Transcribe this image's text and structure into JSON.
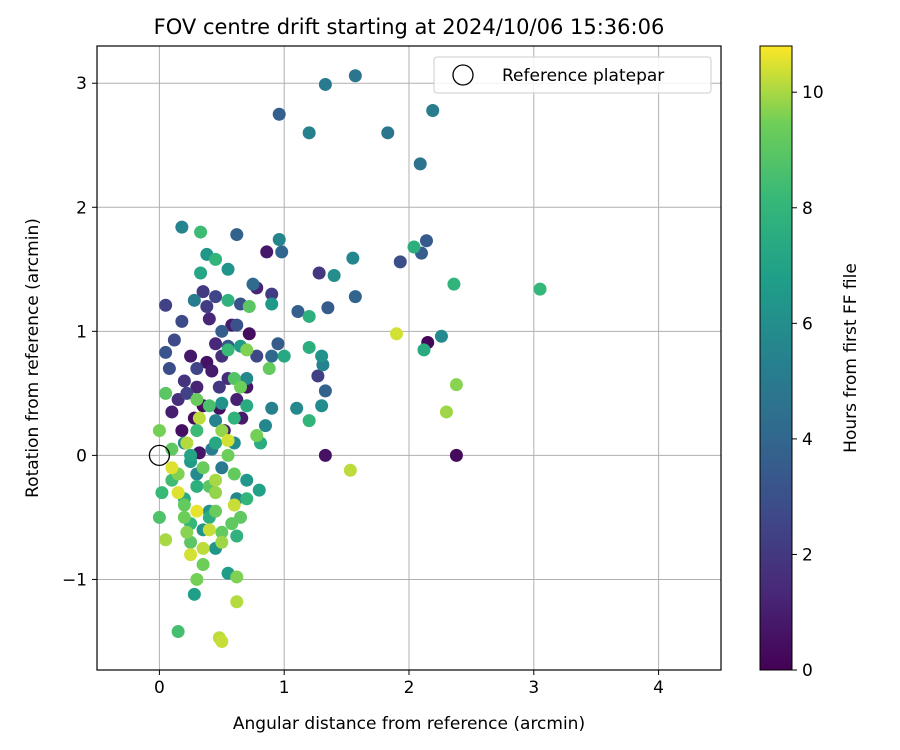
{
  "chart_data": {
    "type": "scatter",
    "title": "FOV centre drift starting at 2024/10/06 15:36:06",
    "xlabel": "Angular distance from reference (arcmin)",
    "ylabel": "Rotation from reference (arcmin)",
    "xlim": [
      -0.5,
      4.5
    ],
    "ylim": [
      -1.73,
      3.3
    ],
    "xticks": [
      0,
      1,
      2,
      3,
      4
    ],
    "yticks": [
      -1,
      0,
      1,
      2,
      3
    ],
    "xtick_labels": [
      "0",
      "1",
      "2",
      "3",
      "4"
    ],
    "ytick_labels": [
      "−1",
      "0",
      "1",
      "2",
      "3"
    ],
    "grid": true,
    "legend": {
      "label": "Reference platepar",
      "placement": "top-right"
    },
    "reference_point": {
      "x": 0,
      "y": 0
    },
    "colorbar": {
      "label": "Hours from first FF file",
      "colormap": "viridis",
      "range": [
        0,
        10.8
      ],
      "ticks": [
        0,
        2,
        4,
        6,
        8,
        10
      ],
      "tick_labels": [
        "0",
        "2",
        "4",
        "6",
        "8",
        "10"
      ]
    },
    "points": [
      {
        "x": 0.38,
        "y": 0.75,
        "c": 0.6
      },
      {
        "x": 0.42,
        "y": 0.68,
        "c": 0.9
      },
      {
        "x": 0.3,
        "y": 0.55,
        "c": 1.2
      },
      {
        "x": 0.48,
        "y": 0.38,
        "c": 0.5
      },
      {
        "x": 0.55,
        "y": 0.62,
        "c": 1.5
      },
      {
        "x": 0.25,
        "y": 0.8,
        "c": 0.8
      },
      {
        "x": 0.62,
        "y": 0.45,
        "c": 1.1
      },
      {
        "x": 0.35,
        "y": 0.4,
        "c": 0.3
      },
      {
        "x": 0.2,
        "y": 0.6,
        "c": 1.8
      },
      {
        "x": 0.45,
        "y": 0.9,
        "c": 1.4
      },
      {
        "x": 0.7,
        "y": 0.55,
        "c": 0.7
      },
      {
        "x": 0.28,
        "y": 0.3,
        "c": 0.4
      },
      {
        "x": 0.52,
        "y": 0.2,
        "c": 1.0
      },
      {
        "x": 0.15,
        "y": 0.45,
        "c": 1.6
      },
      {
        "x": 0.4,
        "y": 1.1,
        "c": 1.3
      },
      {
        "x": 0.58,
        "y": 1.05,
        "c": 0.9
      },
      {
        "x": 0.78,
        "y": 1.35,
        "c": 1.2
      },
      {
        "x": 0.86,
        "y": 1.64,
        "c": 0.8
      },
      {
        "x": 0.72,
        "y": 0.98,
        "c": 0.4
      },
      {
        "x": 0.32,
        "y": 0.02,
        "c": 0.7
      },
      {
        "x": 1.33,
        "y": 0.0,
        "c": 0.6
      },
      {
        "x": 2.38,
        "y": 0.0,
        "c": 0.3
      },
      {
        "x": 2.15,
        "y": 0.91,
        "c": 0.2
      },
      {
        "x": 0.18,
        "y": 0.2,
        "c": 0.5
      },
      {
        "x": 0.1,
        "y": 0.35,
        "c": 1.0
      },
      {
        "x": 0.66,
        "y": 0.3,
        "c": 0.9
      },
      {
        "x": 0.5,
        "y": 0.8,
        "c": 1.7
      },
      {
        "x": 0.05,
        "y": 1.21,
        "c": 2.4
      },
      {
        "x": 0.18,
        "y": 1.08,
        "c": 2.8
      },
      {
        "x": 0.35,
        "y": 1.32,
        "c": 2.1
      },
      {
        "x": 0.45,
        "y": 1.28,
        "c": 2.6
      },
      {
        "x": 0.62,
        "y": 1.05,
        "c": 3.0
      },
      {
        "x": 0.9,
        "y": 1.3,
        "c": 2.2
      },
      {
        "x": 1.28,
        "y": 1.47,
        "c": 2.0
      },
      {
        "x": 1.27,
        "y": 0.64,
        "c": 2.3
      },
      {
        "x": 1.93,
        "y": 1.56,
        "c": 2.9
      },
      {
        "x": 0.05,
        "y": 0.83,
        "c": 3.2
      },
      {
        "x": 0.3,
        "y": 0.7,
        "c": 2.5
      },
      {
        "x": 0.12,
        "y": 0.93,
        "c": 2.7
      },
      {
        "x": 0.48,
        "y": 0.55,
        "c": 2.0
      },
      {
        "x": 0.22,
        "y": 0.5,
        "c": 2.4
      },
      {
        "x": 0.55,
        "y": 0.88,
        "c": 3.3
      },
      {
        "x": 0.78,
        "y": 0.8,
        "c": 2.6
      },
      {
        "x": 0.38,
        "y": 1.2,
        "c": 2.2
      },
      {
        "x": 0.65,
        "y": 1.22,
        "c": 3.1
      },
      {
        "x": 0.08,
        "y": 0.7,
        "c": 2.9
      },
      {
        "x": 0.96,
        "y": 2.75,
        "c": 3.7
      },
      {
        "x": 1.33,
        "y": 0.52,
        "c": 3.8
      },
      {
        "x": 1.35,
        "y": 1.19,
        "c": 3.5
      },
      {
        "x": 0.98,
        "y": 1.64,
        "c": 4.0
      },
      {
        "x": 2.1,
        "y": 1.63,
        "c": 3.6
      },
      {
        "x": 2.14,
        "y": 1.73,
        "c": 3.4
      },
      {
        "x": 1.57,
        "y": 1.28,
        "c": 3.9
      },
      {
        "x": 0.95,
        "y": 0.9,
        "c": 3.5
      },
      {
        "x": 0.9,
        "y": 0.8,
        "c": 4.1
      },
      {
        "x": 0.62,
        "y": 1.78,
        "c": 3.8
      },
      {
        "x": 0.75,
        "y": 1.38,
        "c": 4.2
      },
      {
        "x": 1.11,
        "y": 1.16,
        "c": 3.7
      },
      {
        "x": 0.5,
        "y": 1.0,
        "c": 3.6
      },
      {
        "x": 1.57,
        "y": 3.06,
        "c": 4.7
      },
      {
        "x": 1.33,
        "y": 2.99,
        "c": 5.0
      },
      {
        "x": 2.19,
        "y": 2.78,
        "c": 5.2
      },
      {
        "x": 1.83,
        "y": 2.6,
        "c": 4.8
      },
      {
        "x": 1.2,
        "y": 2.6,
        "c": 5.3
      },
      {
        "x": 2.09,
        "y": 2.35,
        "c": 4.6
      },
      {
        "x": 0.96,
        "y": 1.74,
        "c": 5.5
      },
      {
        "x": 1.55,
        "y": 1.59,
        "c": 5.6
      },
      {
        "x": 2.26,
        "y": 0.96,
        "c": 5.8
      },
      {
        "x": 1.31,
        "y": 0.73,
        "c": 5.4
      },
      {
        "x": 1.3,
        "y": 0.4,
        "c": 5.9
      },
      {
        "x": 1.1,
        "y": 0.38,
        "c": 5.7
      },
      {
        "x": 0.9,
        "y": 0.38,
        "c": 5.3
      },
      {
        "x": 0.85,
        "y": 0.24,
        "c": 5.6
      },
      {
        "x": 0.18,
        "y": 1.84,
        "c": 5.5
      },
      {
        "x": 0.6,
        "y": 0.1,
        "c": 5.9
      },
      {
        "x": 0.42,
        "y": 0.05,
        "c": 5.2
      },
      {
        "x": 0.3,
        "y": -0.15,
        "c": 5.8
      },
      {
        "x": 0.5,
        "y": -0.1,
        "c": 5.0
      },
      {
        "x": 0.62,
        "y": -0.35,
        "c": 5.6
      },
      {
        "x": 0.45,
        "y": 0.28,
        "c": 5.4
      },
      {
        "x": 0.28,
        "y": 1.25,
        "c": 5.1
      },
      {
        "x": 1.4,
        "y": 1.45,
        "c": 6.0
      },
      {
        "x": 0.7,
        "y": 0.62,
        "c": 5.7
      },
      {
        "x": 1.3,
        "y": 0.8,
        "c": 6.2
      },
      {
        "x": 0.38,
        "y": 1.62,
        "c": 6.4
      },
      {
        "x": 0.9,
        "y": 1.22,
        "c": 6.5
      },
      {
        "x": 0.55,
        "y": 1.5,
        "c": 6.3
      },
      {
        "x": 0.25,
        "y": -0.05,
        "c": 6.6
      },
      {
        "x": 0.4,
        "y": -0.45,
        "c": 6.1
      },
      {
        "x": 0.55,
        "y": -0.95,
        "c": 6.7
      },
      {
        "x": 0.28,
        "y": -1.12,
        "c": 6.8
      },
      {
        "x": 0.2,
        "y": 0.1,
        "c": 6.0
      },
      {
        "x": 0.35,
        "y": -0.6,
        "c": 6.3
      },
      {
        "x": 0.7,
        "y": -0.2,
        "c": 6.5
      },
      {
        "x": 0.8,
        "y": -0.28,
        "c": 6.9
      },
      {
        "x": 0.5,
        "y": 0.42,
        "c": 6.2
      },
      {
        "x": 0.65,
        "y": 0.88,
        "c": 6.6
      },
      {
        "x": 0.45,
        "y": -0.75,
        "c": 6.4
      },
      {
        "x": 2.04,
        "y": 1.68,
        "c": 7.6
      },
      {
        "x": 2.36,
        "y": 1.38,
        "c": 7.9
      },
      {
        "x": 3.05,
        "y": 1.34,
        "c": 8.1
      },
      {
        "x": 2.12,
        "y": 0.85,
        "c": 7.4
      },
      {
        "x": 1.2,
        "y": 1.12,
        "c": 7.7
      },
      {
        "x": 1.0,
        "y": 0.8,
        "c": 7.3
      },
      {
        "x": 1.2,
        "y": 0.28,
        "c": 8.0
      },
      {
        "x": 1.2,
        "y": 0.87,
        "c": 7.6
      },
      {
        "x": 0.81,
        "y": 0.1,
        "c": 7.5
      },
      {
        "x": 0.33,
        "y": 1.8,
        "c": 8.3
      },
      {
        "x": 0.45,
        "y": 1.58,
        "c": 8.0
      },
      {
        "x": 0.33,
        "y": 1.47,
        "c": 7.2
      },
      {
        "x": 0.55,
        "y": 1.25,
        "c": 7.8
      },
      {
        "x": 0.7,
        "y": 0.4,
        "c": 7.4
      },
      {
        "x": 0.55,
        "y": 0.85,
        "c": 8.2
      },
      {
        "x": 0.6,
        "y": 0.3,
        "c": 7.9
      },
      {
        "x": 0.25,
        "y": 0.0,
        "c": 7.1
      },
      {
        "x": 0.1,
        "y": -0.2,
        "c": 8.4
      },
      {
        "x": 0.3,
        "y": -0.25,
        "c": 7.7
      },
      {
        "x": 0.15,
        "y": -1.42,
        "c": 8.5
      },
      {
        "x": 0.25,
        "y": -0.55,
        "c": 8.1
      },
      {
        "x": 0.45,
        "y": 0.1,
        "c": 7.3
      },
      {
        "x": 0.62,
        "y": -0.65,
        "c": 7.8
      },
      {
        "x": 0.4,
        "y": 0.4,
        "c": 8.6
      },
      {
        "x": 0.7,
        "y": -0.35,
        "c": 8.0
      },
      {
        "x": 0.2,
        "y": -0.35,
        "c": 7.5
      },
      {
        "x": 0.6,
        "y": 0.62,
        "c": 8.8
      },
      {
        "x": 0.02,
        "y": -0.3,
        "c": 8.2
      },
      {
        "x": 0.0,
        "y": -0.5,
        "c": 8.7
      },
      {
        "x": 0.4,
        "y": -0.5,
        "c": 7.6
      },
      {
        "x": 0.3,
        "y": 0.2,
        "c": 8.3
      },
      {
        "x": 0.25,
        "y": -0.7,
        "c": 9.0
      },
      {
        "x": 0.5,
        "y": -0.62,
        "c": 9.2
      },
      {
        "x": 0.58,
        "y": -0.55,
        "c": 9.1
      },
      {
        "x": 0.35,
        "y": -0.88,
        "c": 9.4
      },
      {
        "x": 0.3,
        "y": -1.0,
        "c": 9.5
      },
      {
        "x": 0.45,
        "y": -0.45,
        "c": 9.3
      },
      {
        "x": 0.62,
        "y": -0.98,
        "c": 9.6
      },
      {
        "x": 0.4,
        "y": -0.25,
        "c": 9.0
      },
      {
        "x": 0.2,
        "y": -0.4,
        "c": 9.2
      },
      {
        "x": 0.55,
        "y": 0.0,
        "c": 9.4
      },
      {
        "x": 0.65,
        "y": -0.5,
        "c": 9.1
      },
      {
        "x": 0.22,
        "y": -0.62,
        "c": 9.7
      },
      {
        "x": 0.35,
        "y": -0.1,
        "c": 9.3
      },
      {
        "x": 0.5,
        "y": 0.2,
        "c": 9.8
      },
      {
        "x": 0.78,
        "y": 0.16,
        "c": 9.5
      },
      {
        "x": 0.88,
        "y": 0.7,
        "c": 9.2
      },
      {
        "x": 0.65,
        "y": 0.55,
        "c": 9.4
      },
      {
        "x": 0.7,
        "y": 0.85,
        "c": 9.6
      },
      {
        "x": 0.72,
        "y": 1.2,
        "c": 9.0
      },
      {
        "x": 0.3,
        "y": 0.45,
        "c": 9.3
      },
      {
        "x": 0.1,
        "y": 0.05,
        "c": 9.1
      },
      {
        "x": 0.0,
        "y": 0.2,
        "c": 9.5
      },
      {
        "x": 0.05,
        "y": 0.5,
        "c": 9.0
      },
      {
        "x": 0.45,
        "y": -0.3,
        "c": 9.8
      },
      {
        "x": 0.6,
        "y": -0.15,
        "c": 9.2
      },
      {
        "x": 2.38,
        "y": 0.57,
        "c": 9.7
      },
      {
        "x": 2.3,
        "y": 0.35,
        "c": 9.9
      },
      {
        "x": 0.15,
        "y": -0.15,
        "c": 9.6
      },
      {
        "x": 0.2,
        "y": -0.5,
        "c": 9.4
      },
      {
        "x": 0.5,
        "y": -0.7,
        "c": 9.9
      },
      {
        "x": 0.48,
        "y": -1.47,
        "c": 10.2
      },
      {
        "x": 0.5,
        "y": -1.5,
        "c": 10.3
      },
      {
        "x": 0.62,
        "y": -1.18,
        "c": 10.1
      },
      {
        "x": 0.25,
        "y": -0.8,
        "c": 10.4
      },
      {
        "x": 0.35,
        "y": -0.75,
        "c": 10.2
      },
      {
        "x": 0.05,
        "y": -0.68,
        "c": 10.0
      },
      {
        "x": 0.15,
        "y": -0.3,
        "c": 10.5
      },
      {
        "x": 0.4,
        "y": -0.6,
        "c": 10.3
      },
      {
        "x": 0.22,
        "y": 0.1,
        "c": 10.1
      },
      {
        "x": 0.55,
        "y": 0.12,
        "c": 10.4
      },
      {
        "x": 0.32,
        "y": 0.3,
        "c": 10.2
      },
      {
        "x": 0.45,
        "y": -0.2,
        "c": 10.0
      },
      {
        "x": 1.9,
        "y": 0.98,
        "c": 10.4
      },
      {
        "x": 1.53,
        "y": -0.12,
        "c": 10.2
      },
      {
        "x": 0.3,
        "y": -0.45,
        "c": 10.6
      },
      {
        "x": 0.6,
        "y": -0.4,
        "c": 10.3
      },
      {
        "x": 0.1,
        "y": -0.1,
        "c": 10.5
      }
    ]
  }
}
